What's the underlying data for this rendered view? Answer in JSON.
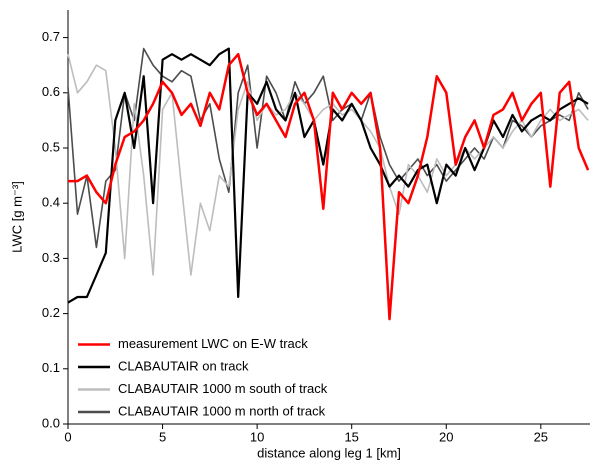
{
  "chart_data": {
    "type": "line",
    "x_label": "distance along leg 1 [km]",
    "y_label": "LWC [g m⁻³]",
    "x": [
      0,
      0.5,
      1,
      1.5,
      2,
      2.5,
      3,
      3.5,
      4,
      4.5,
      5,
      5.5,
      6,
      6.5,
      7,
      7.5,
      8,
      8.5,
      9,
      9.5,
      10,
      10.5,
      11,
      11.5,
      12,
      12.5,
      13,
      13.5,
      14,
      14.5,
      15,
      15.5,
      16,
      16.5,
      17,
      17.5,
      18,
      18.5,
      19,
      19.5,
      20,
      20.5,
      21,
      21.5,
      22,
      22.5,
      23,
      23.5,
      24,
      24.5,
      25,
      25.5,
      26,
      26.5,
      27,
      27.5
    ],
    "series": [
      {
        "name": "measurement LWC on E-W track",
        "color": "#ff0000",
        "values": [
          0.44,
          0.44,
          0.45,
          0.42,
          0.4,
          0.47,
          0.52,
          0.53,
          0.55,
          0.58,
          0.62,
          0.6,
          0.56,
          0.58,
          0.54,
          0.6,
          0.57,
          0.65,
          0.67,
          0.6,
          0.56,
          0.58,
          0.55,
          0.52,
          0.58,
          0.6,
          0.55,
          0.39,
          0.6,
          0.57,
          0.6,
          0.58,
          0.6,
          0.5,
          0.19,
          0.42,
          0.4,
          0.45,
          0.52,
          0.63,
          0.6,
          0.47,
          0.52,
          0.55,
          0.5,
          0.56,
          0.57,
          0.6,
          0.55,
          0.58,
          0.6,
          0.43,
          0.6,
          0.62,
          0.5,
          0.46
        ]
      },
      {
        "name": "CLABAUTAIR on track",
        "color": "#000000",
        "values": [
          0.22,
          0.23,
          0.23,
          0.27,
          0.31,
          0.55,
          0.6,
          0.5,
          0.63,
          0.4,
          0.66,
          0.67,
          0.66,
          0.67,
          0.66,
          0.65,
          0.67,
          0.68,
          0.23,
          0.6,
          0.58,
          0.62,
          0.57,
          0.55,
          0.6,
          0.52,
          0.55,
          0.47,
          0.57,
          0.55,
          0.58,
          0.55,
          0.5,
          0.47,
          0.43,
          0.45,
          0.43,
          0.46,
          0.47,
          0.4,
          0.47,
          0.45,
          0.5,
          0.46,
          0.5,
          0.55,
          0.52,
          0.56,
          0.53,
          0.55,
          0.56,
          0.55,
          0.57,
          0.58,
          0.59,
          0.58
        ]
      },
      {
        "name": "CLABAUTAIR 1000 m south of track",
        "color": "#bdbdbd",
        "values": [
          0.67,
          0.6,
          0.62,
          0.65,
          0.64,
          0.5,
          0.3,
          0.58,
          0.45,
          0.27,
          0.57,
          0.6,
          0.43,
          0.27,
          0.4,
          0.35,
          0.45,
          0.43,
          0.57,
          0.62,
          0.55,
          0.58,
          0.56,
          0.57,
          0.6,
          0.58,
          0.55,
          0.57,
          0.58,
          0.56,
          0.57,
          0.55,
          0.53,
          0.5,
          0.43,
          0.38,
          0.47,
          0.45,
          0.42,
          0.48,
          0.45,
          0.47,
          0.5,
          0.48,
          0.5,
          0.52,
          0.5,
          0.53,
          0.55,
          0.52,
          0.55,
          0.57,
          0.55,
          0.56,
          0.57,
          0.55
        ]
      },
      {
        "name": "CLABAUTAIR 1000 m north of track",
        "color": "#4d4d4d",
        "values": [
          0.61,
          0.38,
          0.45,
          0.32,
          0.44,
          0.46,
          0.6,
          0.55,
          0.68,
          0.65,
          0.63,
          0.62,
          0.64,
          0.63,
          0.55,
          0.58,
          0.48,
          0.42,
          0.6,
          0.65,
          0.5,
          0.63,
          0.6,
          0.55,
          0.62,
          0.58,
          0.6,
          0.63,
          0.55,
          0.57,
          0.58,
          0.55,
          0.6,
          0.52,
          0.47,
          0.44,
          0.46,
          0.48,
          0.45,
          0.47,
          0.44,
          0.46,
          0.48,
          0.5,
          0.48,
          0.52,
          0.5,
          0.55,
          0.54,
          0.52,
          0.54,
          0.55,
          0.56,
          0.55,
          0.6,
          0.57
        ]
      }
    ],
    "xlim": [
      0,
      27.6
    ],
    "ylim": [
      0,
      0.75
    ],
    "xticks": [
      0,
      5,
      10,
      15,
      20,
      25
    ],
    "yticks": [
      {
        "value": 0,
        "label": "0.0"
      },
      0.1,
      0.2,
      0.3,
      0.4,
      0.5,
      0.6,
      0.7
    ],
    "legend": "lower-left"
  }
}
